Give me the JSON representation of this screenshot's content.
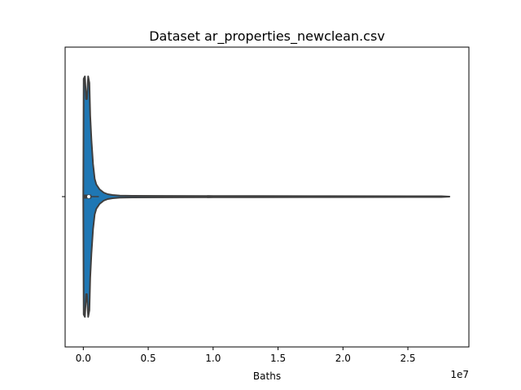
{
  "chart_data": {
    "type": "violin",
    "title": "Dataset ar_properties_newclean.csv",
    "xlabel": "Baths",
    "ylabel": "",
    "x_scale_label": "1e7",
    "x_ticks": [
      0,
      5000000,
      10000000,
      15000000,
      20000000,
      25000000
    ],
    "x_tick_labels": [
      "0.0",
      "0.5",
      "1.0",
      "1.5",
      "2.0",
      "2.5"
    ],
    "xlim": [
      -1400000,
      29700000
    ],
    "data_range": [
      0,
      28200000
    ],
    "box": {
      "whisker_low": 0,
      "q1": 50000,
      "median": 420000,
      "q3": 620000,
      "whisker_high": 1200000
    },
    "grid": false,
    "fill_color": "#1f77b4",
    "line_color": "#3f3f3f"
  }
}
